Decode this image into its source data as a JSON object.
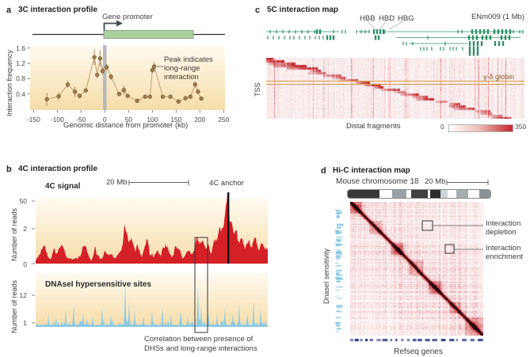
{
  "colors": {
    "red": "#d42027",
    "blue": "#8ccae4",
    "green": "#2f9066",
    "heat": "#c4242b",
    "tan_point": "#a08050",
    "tan_stroke": "#6e4f2f",
    "tan_line": "#c9aa7c",
    "err": "#a8895c",
    "gray_bar": "#b6b9bc",
    "orange_line": "#d89b3f",
    "globin_text": "#8a5a1e",
    "cream_top": "#fefaf2",
    "cream_mid": "#fbeccd",
    "cream_bottom": "#f5dca9",
    "gene_green_fill": "#abd09e",
    "arrow": "#3c4a52",
    "navy": "#2f3c80",
    "lightblue": "#7fc2dd"
  },
  "figure": {
    "panel_a": {
      "letter": "a",
      "title": "3C interaction profile",
      "gene_promoter": "Gene promoter",
      "ylabel": "Interaction frequency",
      "xlabel": "Genomic distance from promoter (kb)",
      "annotation": [
        "Peak indicates",
        "long-range",
        "interaction"
      ]
    },
    "panel_b": {
      "letter": "b",
      "title": "4C interaction profile",
      "signal_label": "4C signal",
      "scale_label": "20 Mb",
      "anchor_label": "4C anchor",
      "ylabel_4c": "Number of reads",
      "yticks_4c": [
        "50",
        "2",
        "0"
      ],
      "dhs_label": "DNAseI hypersensitive sites",
      "ylabel_dhs": "Number of reads",
      "yticks_dhs": [
        "12",
        "1"
      ],
      "caption": [
        "Correlation between presence of",
        "DHSs and long-range interactions"
      ]
    },
    "panel_c": {
      "letter": "c",
      "title": "5C interaction map",
      "gene_labels": [
        "HBB",
        "HBD",
        "HBG"
      ],
      "region_label": "ENm009 (1 Mb)",
      "tss_label": "TSS",
      "globin_label": "γ-δ globin",
      "xlabel": "Distal fragments",
      "colorbar_min": "0",
      "colorbar_max": "350"
    },
    "panel_d": {
      "letter": "d",
      "title": "Hi-C interaction map",
      "chromosome_label": "Mouse chromosome 18",
      "scale_label": "20 Mb",
      "ylabel": "DnaseI sensitivity",
      "xlabel": "Refseq genes",
      "annotation_depletion": "Interaction depletion",
      "annotation_enrichment": "Interaction enrichment"
    }
  },
  "chart_data": [
    {
      "type": "line",
      "panel": "a",
      "title": "3C interaction profile",
      "xlabel": "Genomic distance from promoter (kb)",
      "ylabel": "Interaction frequency",
      "xlim": [
        -150,
        250
      ],
      "ylim": [
        0,
        1.6
      ],
      "xticks": [
        -150,
        -100,
        -50,
        0,
        50,
        100,
        150,
        200,
        250
      ],
      "yticks": [
        0.4,
        0.8,
        1.2,
        1.6
      ],
      "x": [
        -122,
        -97,
        -78,
        -63,
        -53,
        -40,
        -22,
        -16,
        -10,
        -5,
        4,
        13,
        30,
        40,
        48,
        68,
        85,
        95,
        100,
        104,
        122,
        138,
        155,
        170,
        180,
        190,
        196,
        203
      ],
      "y": [
        0.26,
        0.34,
        0.65,
        0.46,
        0.35,
        0.49,
        1.36,
        0.9,
        1.33,
        1.0,
        1.1,
        0.85,
        0.4,
        0.5,
        0.35,
        0.22,
        0.33,
        0.33,
        1.02,
        1.12,
        0.33,
        0.33,
        0.2,
        0.29,
        0.33,
        0.65,
        0.46,
        0.28
      ],
      "err": [
        0.17,
        0.1,
        0.1,
        0.14,
        0.04,
        0.05,
        0.2,
        0.1,
        0.22,
        0.1,
        0.08,
        0.08,
        0.05,
        0.12,
        0.04,
        0.03,
        0.03,
        0.04,
        0.1,
        0.12,
        0.04,
        0.04,
        0.03,
        0.03,
        0.05,
        0.08,
        0.06,
        0.04
      ],
      "annotation": "Peak indicates long-range interaction",
      "grid": false
    },
    {
      "type": "area",
      "panel": "b-4c-signal",
      "ylabel": "Number of reads",
      "yticks": [
        0,
        2,
        50
      ],
      "scalebar": "20 Mb",
      "anchor_label": "4C anchor",
      "anchor_frac": 0.829,
      "note": "spiky red read-count profile across ~100 Mb; tall interaction cluster around the 4C anchor; boxed region highlights long-range interaction peak"
    },
    {
      "type": "area",
      "panel": "b-dhs",
      "ylabel": "Number of reads",
      "yticks": [
        1,
        12
      ],
      "note": "thin light-blue DNaseI hypersensitivity peaks; tall peaks coincide with 4C long-range interaction peaks (boxed region)"
    },
    {
      "type": "heatmap",
      "panel": "c",
      "xlabel": "Distal fragments",
      "ylabel": "TSS",
      "colorbar_range": [
        0,
        350
      ],
      "annotation": "γ-δ globin marked by two orange horizontal lines",
      "note": "5C matrix, interaction signal strongest along descending diagonal from top-left to bottom-right with vertical red streaks; region ENm009 (1 Mb); genes HBB HBD HBG on track above"
    },
    {
      "type": "heatmap",
      "panel": "d",
      "xlabel": "Refseq genes",
      "ylabel": "DnaseI sensitivity",
      "chromosome": "Mouse chromosome 18",
      "scalebar": "20 Mb",
      "annotations": [
        "Interaction depletion (upper box)",
        "Interaction enrichment (lower box)"
      ],
      "note": "Hi-C symmetric matrix with strong dark diagonal, plaid off-diagonal blocks of enrichment/depletion"
    }
  ],
  "gen": {
    "seed_red": 7,
    "seed_blue": 11,
    "seed_c": 23,
    "seed_d": 41,
    "seed_misc": 77,
    "red_peaks": [
      [
        0.695,
        28,
        0.01
      ],
      [
        0.72,
        22,
        0.008
      ],
      [
        0.742,
        18,
        0.007
      ],
      [
        0.77,
        24,
        0.008
      ],
      [
        0.793,
        38,
        0.009
      ],
      [
        0.81,
        32,
        0.006
      ],
      [
        0.82,
        50,
        0.005
      ],
      [
        0.829,
        86,
        0.0042
      ],
      [
        0.843,
        46,
        0.006
      ],
      [
        0.862,
        36,
        0.008
      ],
      [
        0.886,
        28,
        0.009
      ],
      [
        0.915,
        22,
        0.01
      ],
      [
        0.945,
        28,
        0.01
      ],
      [
        0.975,
        20,
        0.008
      ],
      [
        0.995,
        14,
        0.006
      ]
    ],
    "blue_spikes": [
      [
        0.055,
        16
      ],
      [
        0.09,
        12
      ],
      [
        0.13,
        22
      ],
      [
        0.165,
        28
      ],
      [
        0.205,
        18
      ],
      [
        0.245,
        14
      ],
      [
        0.285,
        24
      ],
      [
        0.325,
        16
      ],
      [
        0.385,
        60
      ],
      [
        0.402,
        32
      ],
      [
        0.425,
        22
      ],
      [
        0.465,
        14
      ],
      [
        0.5,
        20
      ],
      [
        0.545,
        26
      ],
      [
        0.585,
        16
      ],
      [
        0.625,
        20
      ],
      [
        0.655,
        14
      ],
      [
        0.698,
        54
      ],
      [
        0.713,
        26
      ],
      [
        0.745,
        20
      ],
      [
        0.78,
        16
      ],
      [
        0.815,
        24
      ],
      [
        0.85,
        18
      ],
      [
        0.878,
        30
      ],
      [
        0.91,
        16
      ],
      [
        0.94,
        34
      ],
      [
        0.97,
        22
      ]
    ],
    "hic_blocks": [
      [
        0,
        14
      ],
      [
        24,
        40
      ],
      [
        52,
        66
      ],
      [
        74,
        92
      ],
      [
        100,
        116
      ],
      [
        126,
        140
      ],
      [
        146,
        168
      ]
    ],
    "hic_blobs": [
      7,
      60,
      108,
      157
    ],
    "gene_rows": [
      {
        "y": 40,
        "lines": [
          [
            336,
            428
          ],
          [
            452,
            466
          ],
          [
            489,
            660
          ]
        ],
        "ticks": [
          341,
          349,
          357,
          365,
          373,
          381,
          389,
          397,
          421,
          432,
          436,
          450,
          456,
          461,
          466,
          486,
          578,
          583,
          648,
          656,
          660
        ],
        "thick": [
          400,
          404,
          472,
          476,
          480,
          484,
          596,
          601,
          606,
          611,
          616,
          624,
          629,
          634,
          639,
          644
        ]
      },
      {
        "y": 47.5,
        "lines": [
          [
            500,
            657
          ]
        ],
        "ticks": [
          338,
          345,
          352,
          359,
          366,
          371,
          378,
          385,
          391,
          398,
          403,
          408,
          540
        ],
        "thick": [
          413,
          417,
          421,
          474,
          478,
          592,
          597,
          602,
          609,
          614,
          619,
          633,
          638,
          643
        ]
      },
      {
        "y": 55,
        "lines": [
          [
            516,
            590
          ]
        ],
        "ticks": [
          509,
          513,
          521,
          562
        ],
        "thick": [
          593,
          598,
          603,
          608,
          625,
          630,
          635
        ]
      },
      {
        "y": 61.5,
        "lines": [],
        "ticks": [
          531,
          535,
          539,
          545,
          556,
          560,
          568,
          572,
          576,
          584
        ],
        "thick": [
          593,
          598,
          603
        ]
      },
      {
        "y": 67.5,
        "lines": [],
        "ticks": [],
        "thick": [
          593,
          598,
          603
        ]
      }
    ],
    "gene_leaders": [
      [
        464,
        27,
        474,
        37
      ],
      [
        487,
        27,
        480,
        37
      ],
      [
        509,
        27,
        491,
        37
      ]
    ],
    "ideogram": [
      [
        "#383838",
        0.22
      ],
      [
        "#ffffff",
        0.09
      ],
      [
        "#9aa2a8",
        0.1
      ],
      [
        "#ffffff",
        0.035
      ],
      [
        "#404040",
        0.115
      ],
      [
        "#ffffff",
        0.02
      ],
      [
        "#2d2d2d",
        0.07
      ],
      [
        "#cfd4d6",
        0.05
      ],
      [
        "#ffffff",
        0.06
      ],
      [
        "#a8adb0",
        0.085
      ],
      [
        "#ffffff",
        0.075
      ],
      [
        "#8d9296",
        0.08
      ]
    ]
  }
}
